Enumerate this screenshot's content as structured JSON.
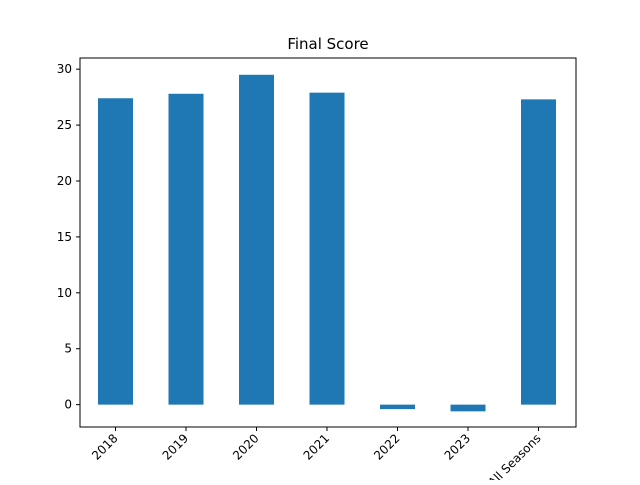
{
  "chart_data": {
    "type": "bar",
    "title": "Final Score",
    "xlabel": "",
    "ylabel": "",
    "categories": [
      "2018",
      "2019",
      "2020",
      "2021",
      "2022",
      "2023",
      "All Seasons"
    ],
    "values": [
      27.4,
      27.8,
      29.5,
      27.9,
      -0.4,
      -0.6,
      27.3
    ],
    "ylim": [
      -2,
      31
    ],
    "yticks": [
      0,
      5,
      10,
      15,
      20,
      25,
      30
    ],
    "bar_color": "#1f77b4",
    "grid": false,
    "legend": "none"
  }
}
